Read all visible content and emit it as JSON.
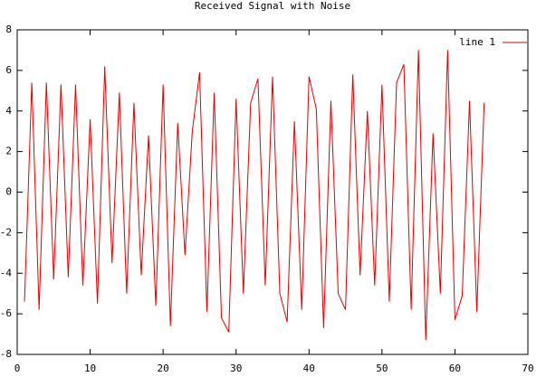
{
  "chart_data": {
    "type": "line",
    "title": "Received Signal with Noise",
    "x": [
      1,
      2,
      3,
      4,
      5,
      6,
      7,
      8,
      9,
      10,
      11,
      12,
      13,
      14,
      15,
      16,
      17,
      18,
      19,
      20,
      21,
      22,
      23,
      24,
      25,
      26,
      27,
      28,
      29,
      30,
      31,
      32,
      33,
      34,
      35,
      36,
      37,
      38,
      39,
      40,
      41,
      42,
      43,
      44,
      45,
      46,
      47,
      48,
      49,
      50,
      51,
      52,
      53,
      54,
      55,
      56,
      57,
      58,
      59,
      60,
      61,
      62,
      63,
      64
    ],
    "series": [
      {
        "name": "line 1",
        "color": "#e00000",
        "values": [
          -5.4,
          5.4,
          -5.8,
          5.4,
          -4.3,
          5.3,
          -4.2,
          5.3,
          -4.6,
          3.6,
          -5.5,
          6.2,
          -3.5,
          4.9,
          -5.0,
          4.4,
          -4.1,
          2.8,
          -5.6,
          5.3,
          -6.6,
          3.4,
          -3.1,
          3.0,
          5.9,
          -5.9,
          4.9,
          -6.2,
          -6.9,
          4.6,
          -5.0,
          4.4,
          5.6,
          -4.6,
          5.7,
          -5.0,
          -6.4,
          3.5,
          -5.8,
          5.7,
          4.1,
          -6.7,
          4.5,
          -5.0,
          -5.8,
          5.8,
          -4.1,
          4.0,
          -4.6,
          5.3,
          -5.4,
          5.4,
          6.3,
          -5.8,
          7.0,
          -7.3,
          2.9,
          -5.0,
          7.0,
          -6.3,
          -5.1,
          4.5,
          -5.9,
          4.4
        ]
      }
    ],
    "xlim": [
      0,
      70
    ],
    "xticks": [
      0,
      10,
      20,
      30,
      40,
      50,
      60,
      70
    ],
    "ylim": [
      -8,
      8
    ],
    "yticks": [
      -8,
      -6,
      -4,
      -2,
      0,
      2,
      4,
      6,
      8
    ],
    "legend": "top-right"
  }
}
